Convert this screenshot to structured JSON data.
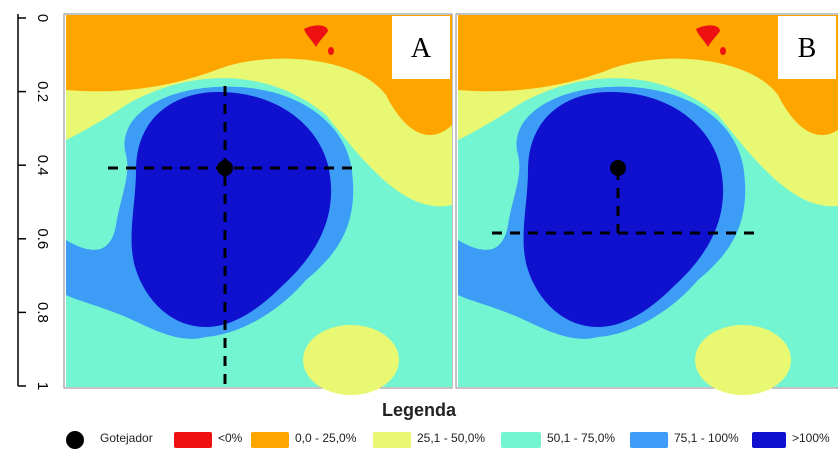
{
  "y_axis": {
    "ticks": [
      "0",
      "0.2",
      "0.4",
      "0.6",
      "0.8",
      "1"
    ]
  },
  "panels": [
    {
      "label": "A"
    },
    {
      "label": "B"
    }
  ],
  "legend": {
    "title": "Legenda",
    "items": [
      {
        "label": "Gotejador",
        "color": "#000000",
        "shape": "dot"
      },
      {
        "label": "<0%",
        "color": "#ee1111"
      },
      {
        "label": "0,0 - 25,0%",
        "color": "#ffa500"
      },
      {
        "label": "25,1 - 50,0%",
        "color": "#e8f873"
      },
      {
        "label": "50,1 - 75,0%",
        "color": "#74f5d2"
      },
      {
        "label": "75,1 - 100%",
        "color": "#3d9cf5"
      },
      {
        "label": ">100%",
        "color": "#1010cf"
      }
    ]
  }
}
